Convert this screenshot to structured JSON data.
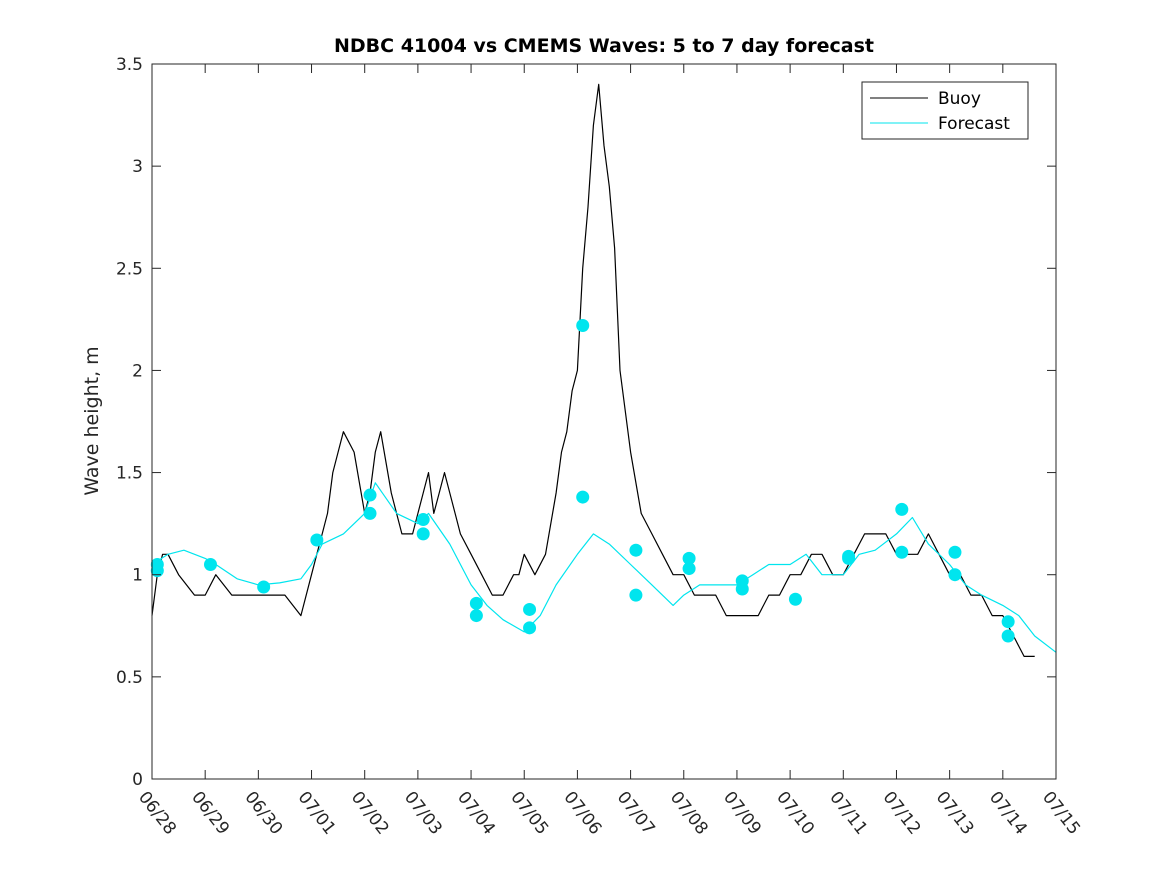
{
  "chart_data": {
    "type": "line",
    "title": "NDBC 41004 vs CMEMS Waves: 5 to 7 day forecast",
    "xlabel": "",
    "ylabel": "Wave height, m",
    "x_ticks": [
      "06/28",
      "06/29",
      "06/30",
      "07/01",
      "07/02",
      "07/03",
      "07/04",
      "07/05",
      "07/06",
      "07/07",
      "07/08",
      "07/09",
      "07/10",
      "07/11",
      "07/12",
      "07/13",
      "07/14",
      "07/15"
    ],
    "ylim": [
      0,
      3.5
    ],
    "y_ticks": [
      "0",
      "0.5",
      "1",
      "1.5",
      "2",
      "2.5",
      "3",
      "3.5"
    ],
    "grid": false,
    "legend_position": "top-right",
    "colors": {
      "buoy": "#000000",
      "forecast": "#00e5ee",
      "axis": "#262626"
    },
    "series": [
      {
        "name": "Buoy",
        "x": [
          0,
          0.1,
          0.2,
          0.3,
          0.5,
          0.8,
          1.0,
          1.2,
          1.5,
          1.8,
          2.0,
          2.2,
          2.5,
          2.8,
          3.0,
          3.1,
          3.2,
          3.3,
          3.4,
          3.5,
          3.6,
          3.8,
          4.0,
          4.1,
          4.2,
          4.3,
          4.5,
          4.7,
          4.9,
          5.0,
          5.1,
          5.2,
          5.3,
          5.4,
          5.5,
          5.6,
          5.7,
          5.8,
          6.0,
          6.2,
          6.4,
          6.6,
          6.8,
          6.9,
          7.0,
          7.2,
          7.4,
          7.6,
          7.7,
          7.8,
          7.9,
          8.0,
          8.1,
          8.2,
          8.3,
          8.4,
          8.5,
          8.6,
          8.7,
          8.8,
          9.0,
          9.2,
          9.4,
          9.6,
          9.8,
          10.0,
          10.2,
          10.4,
          10.6,
          10.8,
          11.0,
          11.2,
          11.4,
          11.6,
          11.8,
          12.0,
          12.2,
          12.4,
          12.6,
          12.8,
          13.0,
          13.2,
          13.4,
          13.6,
          13.8,
          14.0,
          14.2,
          14.4,
          14.6,
          14.8,
          15.0,
          15.2,
          15.4,
          15.6,
          15.8,
          16.0,
          16.2,
          16.4,
          16.6,
          16.8,
          17.0
        ],
        "y": [
          0.8,
          1.0,
          1.1,
          1.1,
          1.0,
          0.9,
          0.9,
          1.0,
          0.9,
          0.9,
          0.9,
          0.9,
          0.9,
          0.8,
          1.0,
          1.1,
          1.2,
          1.3,
          1.5,
          1.6,
          1.7,
          1.6,
          1.3,
          1.4,
          1.6,
          1.7,
          1.4,
          1.2,
          1.2,
          1.3,
          1.4,
          1.5,
          1.3,
          1.4,
          1.5,
          1.4,
          1.3,
          1.2,
          1.1,
          1.0,
          0.9,
          0.9,
          1.0,
          1.0,
          1.1,
          1.0,
          1.1,
          1.4,
          1.6,
          1.7,
          1.9,
          2.0,
          2.5,
          2.8,
          3.2,
          3.4,
          3.1,
          2.9,
          2.6,
          2.0,
          1.6,
          1.3,
          1.2,
          1.1,
          1.0,
          1.0,
          0.9,
          0.9,
          0.9,
          0.8,
          0.8,
          0.8,
          0.8,
          0.9,
          0.9,
          1.0,
          1.0,
          1.1,
          1.1,
          1.0,
          1.0,
          1.1,
          1.2,
          1.2,
          1.2,
          1.1,
          1.1,
          1.1,
          1.2,
          1.1,
          1.0,
          1.0,
          0.9,
          0.9,
          0.8,
          0.8,
          0.7,
          0.6,
          0.6,
          null,
          null
        ]
      },
      {
        "name": "Forecast",
        "x": [
          0,
          0.3,
          0.6,
          1.0,
          1.2,
          1.6,
          2.0,
          2.4,
          2.8,
          3.0,
          3.2,
          3.6,
          4.0,
          4.2,
          4.6,
          5.0,
          5.2,
          5.6,
          6.0,
          6.3,
          6.6,
          7.0,
          7.3,
          7.6,
          8.0,
          8.3,
          8.6,
          9.0,
          9.4,
          9.8,
          10.0,
          10.3,
          10.6,
          11.0,
          11.3,
          11.6,
          12.0,
          12.3,
          12.6,
          13.0,
          13.3,
          13.6,
          14.0,
          14.3,
          14.6,
          15.0,
          15.3,
          15.6,
          16.0,
          16.3,
          16.6,
          17.0
        ],
        "y": [
          1.05,
          1.1,
          1.12,
          1.08,
          1.05,
          0.98,
          0.95,
          0.96,
          0.98,
          1.05,
          1.15,
          1.2,
          1.3,
          1.45,
          1.3,
          1.25,
          1.3,
          1.15,
          0.95,
          0.85,
          0.78,
          0.72,
          0.8,
          0.95,
          1.1,
          1.2,
          1.15,
          1.05,
          0.95,
          0.85,
          0.9,
          0.95,
          0.95,
          0.95,
          1.0,
          1.05,
          1.05,
          1.1,
          1.0,
          1.0,
          1.1,
          1.12,
          1.2,
          1.28,
          1.15,
          1.05,
          0.95,
          0.9,
          0.85,
          0.8,
          0.7,
          0.62
        ]
      }
    ],
    "markers": {
      "x": [
        0.1,
        0.1,
        1.1,
        2.1,
        3.1,
        4.1,
        4.1,
        5.1,
        5.1,
        6.1,
        6.1,
        7.1,
        7.1,
        8.1,
        8.1,
        9.1,
        9.1,
        10.1,
        10.1,
        11.1,
        11.1,
        12.1,
        13.1,
        13.1,
        14.1,
        14.1,
        15.1,
        15.1,
        16.1,
        16.1
      ],
      "y": [
        1.02,
        1.05,
        1.05,
        0.94,
        1.17,
        1.3,
        1.39,
        1.2,
        1.27,
        0.8,
        0.86,
        0.74,
        0.83,
        1.38,
        2.22,
        0.9,
        1.12,
        1.03,
        1.08,
        0.93,
        0.97,
        0.88,
        1.09,
        1.08,
        1.11,
        1.32,
        1.0,
        1.11,
        0.7,
        0.77
      ]
    }
  }
}
